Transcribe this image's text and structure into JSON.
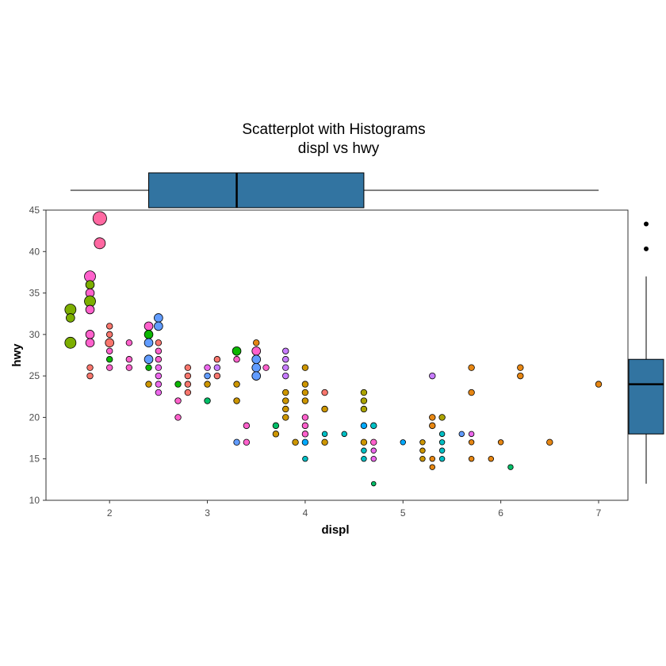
{
  "chart_data": {
    "type": "scatter",
    "title": "Scatterplot with Histograms",
    "subtitle": "displ vs hwy",
    "xlabel": "displ",
    "ylabel": "hwy",
    "xlim": [
      1.35,
      7.3
    ],
    "ylim": [
      10,
      45
    ],
    "xticks": [
      "2",
      "3",
      "4",
      "5",
      "6",
      "7"
    ],
    "yticks": [
      "10",
      "15",
      "20",
      "25",
      "30",
      "35",
      "40",
      "45"
    ],
    "grid": false,
    "legend": "none",
    "marker_size": "count",
    "colors": [
      "#F8766D",
      "#E68613",
      "#CD9600",
      "#ABA300",
      "#7CAE00",
      "#0CB702",
      "#00BE67",
      "#00C19A",
      "#00BFC4",
      "#00B8E7",
      "#00A9FF",
      "#8494FF",
      "#C77CFF",
      "#ED68ED",
      "#FF61CC",
      "#FF68A1"
    ],
    "points": [
      {
        "x": 1.6,
        "y": 33,
        "count": 3,
        "c": "#7CAE00"
      },
      {
        "x": 1.6,
        "y": 32,
        "count": 2,
        "c": "#7CAE00"
      },
      {
        "x": 1.6,
        "y": 29,
        "count": 3,
        "c": "#7CAE00"
      },
      {
        "x": 1.8,
        "y": 37,
        "count": 3,
        "c": "#FF61CC"
      },
      {
        "x": 1.8,
        "y": 36,
        "count": 2,
        "c": "#7CAE00"
      },
      {
        "x": 1.8,
        "y": 35,
        "count": 2,
        "c": "#FF61CC"
      },
      {
        "x": 1.8,
        "y": 34,
        "count": 3,
        "c": "#7CAE00"
      },
      {
        "x": 1.8,
        "y": 33,
        "count": 2,
        "c": "#FF61CC"
      },
      {
        "x": 1.8,
        "y": 30,
        "count": 2,
        "c": "#FF61CC"
      },
      {
        "x": 1.8,
        "y": 29,
        "count": 2,
        "c": "#FF61CC"
      },
      {
        "x": 1.8,
        "y": 26,
        "count": 1,
        "c": "#F8766D"
      },
      {
        "x": 1.8,
        "y": 25,
        "count": 1,
        "c": "#F8766D"
      },
      {
        "x": 1.9,
        "y": 44,
        "count": 4,
        "c": "#FF68A1"
      },
      {
        "x": 1.9,
        "y": 41,
        "count": 3,
        "c": "#FF68A1"
      },
      {
        "x": 2.0,
        "y": 31,
        "count": 1,
        "c": "#F8766D"
      },
      {
        "x": 2.0,
        "y": 30,
        "count": 1,
        "c": "#F8766D"
      },
      {
        "x": 2.0,
        "y": 29,
        "count": 2,
        "c": "#F8766D"
      },
      {
        "x": 2.0,
        "y": 28,
        "count": 1,
        "c": "#FF61CC"
      },
      {
        "x": 2.0,
        "y": 27,
        "count": 1,
        "c": "#0CB702"
      },
      {
        "x": 2.0,
        "y": 26,
        "count": 1,
        "c": "#FF61CC"
      },
      {
        "x": 2.2,
        "y": 29,
        "count": 1,
        "c": "#FF61CC"
      },
      {
        "x": 2.2,
        "y": 27,
        "count": 1,
        "c": "#FF61CC"
      },
      {
        "x": 2.2,
        "y": 26,
        "count": 1,
        "c": "#FF61CC"
      },
      {
        "x": 2.4,
        "y": 31,
        "count": 2,
        "c": "#FF61CC"
      },
      {
        "x": 2.4,
        "y": 30,
        "count": 2,
        "c": "#0CB702"
      },
      {
        "x": 2.4,
        "y": 29,
        "count": 2,
        "c": "#619CFF"
      },
      {
        "x": 2.4,
        "y": 27,
        "count": 2,
        "c": "#619CFF"
      },
      {
        "x": 2.4,
        "y": 26,
        "count": 1,
        "c": "#0CB702"
      },
      {
        "x": 2.4,
        "y": 24,
        "count": 1,
        "c": "#CD9600"
      },
      {
        "x": 2.5,
        "y": 32,
        "count": 2,
        "c": "#619CFF"
      },
      {
        "x": 2.5,
        "y": 31,
        "count": 2,
        "c": "#619CFF"
      },
      {
        "x": 2.5,
        "y": 29,
        "count": 1,
        "c": "#F8766D"
      },
      {
        "x": 2.5,
        "y": 28,
        "count": 1,
        "c": "#FF61CC"
      },
      {
        "x": 2.5,
        "y": 27,
        "count": 1,
        "c": "#FF61CC"
      },
      {
        "x": 2.5,
        "y": 26,
        "count": 1,
        "c": "#ED68ED"
      },
      {
        "x": 2.5,
        "y": 25,
        "count": 1,
        "c": "#ED68ED"
      },
      {
        "x": 2.5,
        "y": 24,
        "count": 1,
        "c": "#ED68ED"
      },
      {
        "x": 2.5,
        "y": 23,
        "count": 1,
        "c": "#ED68ED"
      },
      {
        "x": 2.7,
        "y": 24,
        "count": 1,
        "c": "#0CB702"
      },
      {
        "x": 2.7,
        "y": 22,
        "count": 1,
        "c": "#FF61CC"
      },
      {
        "x": 2.7,
        "y": 20,
        "count": 1,
        "c": "#FF61CC"
      },
      {
        "x": 2.8,
        "y": 26,
        "count": 1,
        "c": "#F8766D"
      },
      {
        "x": 2.8,
        "y": 25,
        "count": 1,
        "c": "#F8766D"
      },
      {
        "x": 2.8,
        "y": 24,
        "count": 1,
        "c": "#F8766D"
      },
      {
        "x": 2.8,
        "y": 23,
        "count": 1,
        "c": "#F8766D"
      },
      {
        "x": 3.0,
        "y": 26,
        "count": 1,
        "c": "#ED68ED"
      },
      {
        "x": 3.0,
        "y": 25,
        "count": 1,
        "c": "#619CFF"
      },
      {
        "x": 3.0,
        "y": 24,
        "count": 1,
        "c": "#CD9600"
      },
      {
        "x": 3.0,
        "y": 22,
        "count": 1,
        "c": "#00BE67"
      },
      {
        "x": 3.1,
        "y": 27,
        "count": 1,
        "c": "#F8766D"
      },
      {
        "x": 3.1,
        "y": 26,
        "count": 1,
        "c": "#C77CFF"
      },
      {
        "x": 3.1,
        "y": 25,
        "count": 1,
        "c": "#F8766D"
      },
      {
        "x": 3.3,
        "y": 28,
        "count": 2,
        "c": "#0CB702"
      },
      {
        "x": 3.3,
        "y": 27,
        "count": 1,
        "c": "#FF61CC"
      },
      {
        "x": 3.3,
        "y": 24,
        "count": 1,
        "c": "#CD9600"
      },
      {
        "x": 3.3,
        "y": 22,
        "count": 1,
        "c": "#CD9600"
      },
      {
        "x": 3.3,
        "y": 17,
        "count": 1,
        "c": "#619CFF"
      },
      {
        "x": 3.4,
        "y": 19,
        "count": 1,
        "c": "#FF61CC"
      },
      {
        "x": 3.4,
        "y": 17,
        "count": 1,
        "c": "#FF61CC"
      },
      {
        "x": 3.5,
        "y": 29,
        "count": 1,
        "c": "#E68613"
      },
      {
        "x": 3.5,
        "y": 28,
        "count": 2,
        "c": "#FF61CC"
      },
      {
        "x": 3.5,
        "y": 27,
        "count": 2,
        "c": "#619CFF"
      },
      {
        "x": 3.5,
        "y": 26,
        "count": 2,
        "c": "#619CFF"
      },
      {
        "x": 3.5,
        "y": 25,
        "count": 2,
        "c": "#619CFF"
      },
      {
        "x": 3.6,
        "y": 26,
        "count": 1,
        "c": "#FF61CC"
      },
      {
        "x": 3.7,
        "y": 19,
        "count": 1,
        "c": "#00BE67"
      },
      {
        "x": 3.7,
        "y": 18,
        "count": 1,
        "c": "#CD9600"
      },
      {
        "x": 3.8,
        "y": 28,
        "count": 1,
        "c": "#C77CFF"
      },
      {
        "x": 3.8,
        "y": 27,
        "count": 1,
        "c": "#C77CFF"
      },
      {
        "x": 3.8,
        "y": 26,
        "count": 1,
        "c": "#C77CFF"
      },
      {
        "x": 3.8,
        "y": 25,
        "count": 1,
        "c": "#C77CFF"
      },
      {
        "x": 3.8,
        "y": 23,
        "count": 1,
        "c": "#CD9600"
      },
      {
        "x": 3.8,
        "y": 22,
        "count": 1,
        "c": "#CD9600"
      },
      {
        "x": 3.8,
        "y": 21,
        "count": 1,
        "c": "#CD9600"
      },
      {
        "x": 3.8,
        "y": 20,
        "count": 1,
        "c": "#CD9600"
      },
      {
        "x": 3.9,
        "y": 17,
        "count": 1,
        "c": "#CD9600"
      },
      {
        "x": 4.0,
        "y": 26,
        "count": 1,
        "c": "#CD9600"
      },
      {
        "x": 4.0,
        "y": 24,
        "count": 1,
        "c": "#CD9600"
      },
      {
        "x": 4.0,
        "y": 23,
        "count": 1,
        "c": "#CD9600"
      },
      {
        "x": 4.0,
        "y": 22,
        "count": 1,
        "c": "#CD9600"
      },
      {
        "x": 4.0,
        "y": 20,
        "count": 1,
        "c": "#FF61CC"
      },
      {
        "x": 4.0,
        "y": 19,
        "count": 1,
        "c": "#FF61CC"
      },
      {
        "x": 4.0,
        "y": 18,
        "count": 1,
        "c": "#FF61CC"
      },
      {
        "x": 4.0,
        "y": 17,
        "count": 1,
        "c": "#00A9FF"
      },
      {
        "x": 4.0,
        "y": 15,
        "count": 0.7,
        "c": "#00BFC4"
      },
      {
        "x": 4.2,
        "y": 23,
        "count": 1,
        "c": "#F8766D"
      },
      {
        "x": 4.2,
        "y": 21,
        "count": 1,
        "c": "#CD9600"
      },
      {
        "x": 4.2,
        "y": 18,
        "count": 0.7,
        "c": "#00BFC4"
      },
      {
        "x": 4.2,
        "y": 17,
        "count": 1,
        "c": "#CD9600"
      },
      {
        "x": 4.4,
        "y": 18,
        "count": 0.7,
        "c": "#00BFC4"
      },
      {
        "x": 4.6,
        "y": 23,
        "count": 1,
        "c": "#ABA300"
      },
      {
        "x": 4.6,
        "y": 22,
        "count": 1,
        "c": "#ABA300"
      },
      {
        "x": 4.6,
        "y": 21,
        "count": 1,
        "c": "#ABA300"
      },
      {
        "x": 4.6,
        "y": 19,
        "count": 1,
        "c": "#00A9FF"
      },
      {
        "x": 4.6,
        "y": 17,
        "count": 1,
        "c": "#CD9600"
      },
      {
        "x": 4.6,
        "y": 16,
        "count": 0.7,
        "c": "#00BFC4"
      },
      {
        "x": 4.6,
        "y": 15,
        "count": 0.7,
        "c": "#00BFC4"
      },
      {
        "x": 4.7,
        "y": 19,
        "count": 1,
        "c": "#00BFC4"
      },
      {
        "x": 4.7,
        "y": 17,
        "count": 1,
        "c": "#FF61CC"
      },
      {
        "x": 4.7,
        "y": 16,
        "count": 0.7,
        "c": "#ED68ED"
      },
      {
        "x": 4.7,
        "y": 15,
        "count": 0.7,
        "c": "#ED68ED"
      },
      {
        "x": 4.7,
        "y": 12,
        "count": 0.4,
        "c": "#00BE67"
      },
      {
        "x": 5.0,
        "y": 17,
        "count": 0.7,
        "c": "#00A9FF"
      },
      {
        "x": 5.2,
        "y": 17,
        "count": 0.7,
        "c": "#CD9600"
      },
      {
        "x": 5.2,
        "y": 16,
        "count": 0.7,
        "c": "#CD9600"
      },
      {
        "x": 5.2,
        "y": 15,
        "count": 0.7,
        "c": "#CD9600"
      },
      {
        "x": 5.3,
        "y": 25,
        "count": 1,
        "c": "#C77CFF"
      },
      {
        "x": 5.3,
        "y": 20,
        "count": 1,
        "c": "#E68613"
      },
      {
        "x": 5.3,
        "y": 19,
        "count": 1,
        "c": "#E68613"
      },
      {
        "x": 5.3,
        "y": 15,
        "count": 0.7,
        "c": "#E68613"
      },
      {
        "x": 5.3,
        "y": 14,
        "count": 0.7,
        "c": "#E68613"
      },
      {
        "x": 5.4,
        "y": 20,
        "count": 1,
        "c": "#ABA300"
      },
      {
        "x": 5.4,
        "y": 18,
        "count": 0.7,
        "c": "#00BFC4"
      },
      {
        "x": 5.4,
        "y": 17,
        "count": 0.7,
        "c": "#00BFC4"
      },
      {
        "x": 5.4,
        "y": 16,
        "count": 0.7,
        "c": "#00BFC4"
      },
      {
        "x": 5.4,
        "y": 15,
        "count": 0.7,
        "c": "#00BFC4"
      },
      {
        "x": 5.6,
        "y": 18,
        "count": 0.7,
        "c": "#619CFF"
      },
      {
        "x": 5.7,
        "y": 26,
        "count": 1,
        "c": "#E68613"
      },
      {
        "x": 5.7,
        "y": 23,
        "count": 1,
        "c": "#E68613"
      },
      {
        "x": 5.7,
        "y": 18,
        "count": 0.7,
        "c": "#ED68ED"
      },
      {
        "x": 5.7,
        "y": 17,
        "count": 0.7,
        "c": "#E68613"
      },
      {
        "x": 5.7,
        "y": 15,
        "count": 0.7,
        "c": "#E68613"
      },
      {
        "x": 5.9,
        "y": 15,
        "count": 0.7,
        "c": "#E68613"
      },
      {
        "x": 6.0,
        "y": 17,
        "count": 0.7,
        "c": "#E68613"
      },
      {
        "x": 6.1,
        "y": 14,
        "count": 0.7,
        "c": "#00BE67"
      },
      {
        "x": 6.2,
        "y": 26,
        "count": 1,
        "c": "#E68613"
      },
      {
        "x": 6.2,
        "y": 25,
        "count": 1,
        "c": "#E68613"
      },
      {
        "x": 6.5,
        "y": 17,
        "count": 1,
        "c": "#E68613"
      },
      {
        "x": 7.0,
        "y": 24,
        "count": 1,
        "c": "#E68613"
      }
    ],
    "boxplot_x": {
      "min": 1.6,
      "q1": 2.4,
      "median": 3.3,
      "q3": 4.6,
      "max": 7.0,
      "fill": "#3274A1"
    },
    "boxplot_y": {
      "min": 12,
      "q1": 18,
      "median": 24,
      "q3": 27,
      "max": 37,
      "outliers": [
        44,
        41
      ],
      "fill": "#3274A1"
    }
  }
}
